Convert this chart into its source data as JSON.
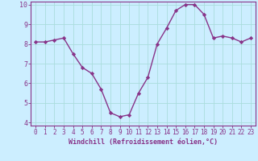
{
  "x": [
    0,
    1,
    2,
    3,
    4,
    5,
    6,
    7,
    8,
    9,
    10,
    11,
    12,
    13,
    14,
    15,
    16,
    17,
    18,
    19,
    20,
    21,
    22,
    23
  ],
  "y": [
    8.1,
    8.1,
    8.2,
    8.3,
    7.5,
    6.8,
    6.5,
    5.7,
    4.5,
    4.3,
    4.4,
    5.5,
    6.3,
    8.0,
    8.8,
    9.7,
    10.0,
    10.0,
    9.5,
    8.3,
    8.4,
    8.3,
    8.1,
    8.3
  ],
  "line_color": "#883388",
  "marker": "D",
  "marker_size": 2.2,
  "linewidth": 1.0,
  "bg_color": "#cceeff",
  "grid_color": "#aadddd",
  "xlabel": "Windchill (Refroidissement éolien,°C)",
  "xlabel_color": "#883388",
  "tick_color": "#883388",
  "spine_color": "#883388",
  "ylim": [
    4,
    10
  ],
  "xlim": [
    -0.5,
    23.5
  ],
  "yticks": [
    4,
    5,
    6,
    7,
    8,
    9,
    10
  ],
  "xticks": [
    0,
    1,
    2,
    3,
    4,
    5,
    6,
    7,
    8,
    9,
    10,
    11,
    12,
    13,
    14,
    15,
    16,
    17,
    18,
    19,
    20,
    21,
    22,
    23
  ],
  "tick_fontsize": 5.5,
  "xlabel_fontsize": 6.0
}
